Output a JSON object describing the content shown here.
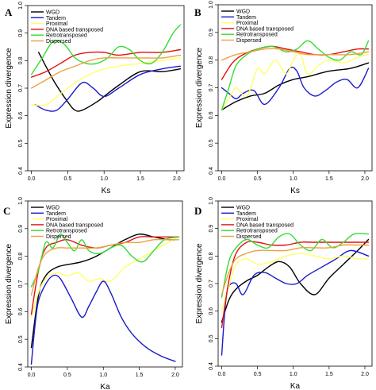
{
  "figure": {
    "legend_entries": [
      "WGD",
      "Tandem",
      "Proximal",
      "DNA based transposed",
      "Retrotransposed",
      "Dispersed"
    ],
    "series_colors": {
      "WGD": "#000000",
      "Tandem": "#1a1acc",
      "Proximal": "#ffff66",
      "DNA based transposed": "#e01010",
      "Retrotransposed": "#33dd33",
      "Dispersed": "#f0a040"
    }
  },
  "chart_data": [
    {
      "type": "line",
      "panel": "A",
      "xlabel": "Ks",
      "ylabel": "Expression divergence",
      "xlim": [
        -0.05,
        2.1
      ],
      "ylim": [
        0.4,
        1.0
      ],
      "xticks": [
        "0.0",
        "0.5",
        "1.0",
        "1.5",
        "2.0"
      ],
      "yticks": [
        "0.4",
        "0.5",
        "0.6",
        "0.7",
        "0.8",
        "0.9",
        "1.0"
      ],
      "legend_position": "top-left",
      "series": [
        {
          "name": "WGD",
          "x": [
            0.1,
            0.3,
            0.5,
            0.6,
            0.7,
            0.9,
            1.0,
            1.2,
            1.5,
            1.8,
            2.05
          ],
          "y": [
            0.83,
            0.73,
            0.65,
            0.62,
            0.62,
            0.65,
            0.67,
            0.71,
            0.76,
            0.76,
            0.77
          ]
        },
        {
          "name": "Tandem",
          "x": [
            0.05,
            0.2,
            0.35,
            0.5,
            0.7,
            0.85,
            1.0,
            1.2,
            1.5,
            1.8,
            2.05
          ],
          "y": [
            0.64,
            0.62,
            0.62,
            0.66,
            0.72,
            0.7,
            0.67,
            0.7,
            0.75,
            0.77,
            0.78
          ]
        },
        {
          "name": "Proximal",
          "x": [
            0.0,
            0.2,
            0.4,
            0.6,
            0.8,
            1.0,
            1.2,
            1.5,
            1.8,
            2.05
          ],
          "y": [
            0.64,
            0.64,
            0.68,
            0.72,
            0.75,
            0.77,
            0.78,
            0.79,
            0.8,
            0.81
          ]
        },
        {
          "name": "DNA based transposed",
          "x": [
            0.0,
            0.2,
            0.4,
            0.6,
            0.8,
            1.0,
            1.2,
            1.5,
            1.8,
            2.05
          ],
          "y": [
            0.74,
            0.76,
            0.79,
            0.82,
            0.83,
            0.83,
            0.82,
            0.83,
            0.83,
            0.84
          ]
        },
        {
          "name": "Retrotransposed",
          "x": [
            0.0,
            0.15,
            0.3,
            0.45,
            0.6,
            0.75,
            0.9,
            1.05,
            1.2,
            1.35,
            1.5,
            1.65,
            1.8,
            1.95,
            2.05
          ],
          "y": [
            0.75,
            0.81,
            0.87,
            0.86,
            0.81,
            0.79,
            0.79,
            0.81,
            0.85,
            0.84,
            0.8,
            0.79,
            0.83,
            0.9,
            0.93
          ]
        },
        {
          "name": "Dispersed",
          "x": [
            0.0,
            0.2,
            0.4,
            0.6,
            0.8,
            1.0,
            1.2,
            1.5,
            1.8,
            2.05
          ],
          "y": [
            0.7,
            0.73,
            0.76,
            0.78,
            0.8,
            0.81,
            0.81,
            0.81,
            0.81,
            0.82
          ]
        }
      ]
    },
    {
      "type": "line",
      "panel": "B",
      "xlabel": "Ks",
      "ylabel": "Expression divergence",
      "xlim": [
        -0.05,
        2.1
      ],
      "ylim": [
        0.4,
        1.0
      ],
      "xticks": [
        "0.0",
        "0.5",
        "1.0",
        "1.5",
        "2.0"
      ],
      "yticks": [
        "0.4",
        "0.5",
        "0.6",
        "0.7",
        "0.8",
        "0.9",
        "1.0"
      ],
      "legend_position": "top-left",
      "series": [
        {
          "name": "WGD",
          "x": [
            0.0,
            0.2,
            0.4,
            0.6,
            0.8,
            1.0,
            1.2,
            1.5,
            1.8,
            2.05
          ],
          "y": [
            0.62,
            0.65,
            0.67,
            0.68,
            0.71,
            0.73,
            0.74,
            0.76,
            0.77,
            0.79
          ]
        },
        {
          "name": "Tandem",
          "x": [
            0.0,
            0.1,
            0.2,
            0.3,
            0.45,
            0.6,
            0.8,
            0.95,
            1.05,
            1.15,
            1.3,
            1.45,
            1.6,
            1.75,
            1.9,
            2.05
          ],
          "y": [
            0.7,
            0.68,
            0.66,
            0.68,
            0.69,
            0.64,
            0.7,
            0.77,
            0.76,
            0.7,
            0.67,
            0.69,
            0.72,
            0.73,
            0.7,
            0.77
          ]
        },
        {
          "name": "Proximal",
          "x": [
            0.0,
            0.1,
            0.2,
            0.35,
            0.5,
            0.6,
            0.75,
            0.9,
            1.0,
            1.1,
            1.2,
            1.35,
            1.5,
            1.7,
            1.9,
            2.05
          ],
          "y": [
            0.62,
            0.66,
            0.7,
            0.67,
            0.77,
            0.75,
            0.8,
            0.75,
            0.8,
            0.82,
            0.75,
            0.78,
            0.8,
            0.79,
            0.81,
            0.82
          ]
        },
        {
          "name": "DNA based transposed",
          "x": [
            0.0,
            0.15,
            0.3,
            0.5,
            0.7,
            0.9,
            1.1,
            1.3,
            1.5,
            1.7,
            1.9,
            2.05
          ],
          "y": [
            0.73,
            0.79,
            0.82,
            0.84,
            0.85,
            0.84,
            0.83,
            0.82,
            0.82,
            0.83,
            0.84,
            0.84
          ]
        },
        {
          "name": "Retrotransposed",
          "x": [
            0.0,
            0.1,
            0.2,
            0.35,
            0.5,
            0.7,
            0.9,
            1.05,
            1.2,
            1.35,
            1.5,
            1.65,
            1.8,
            1.95,
            2.05
          ],
          "y": [
            0.62,
            0.7,
            0.78,
            0.82,
            0.84,
            0.85,
            0.83,
            0.84,
            0.87,
            0.84,
            0.81,
            0.8,
            0.83,
            0.82,
            0.87
          ]
        },
        {
          "name": "Dispersed",
          "x": [
            0.0,
            0.2,
            0.4,
            0.6,
            0.8,
            1.0,
            1.2,
            1.5,
            1.8,
            2.05
          ],
          "y": [
            0.8,
            0.82,
            0.83,
            0.84,
            0.84,
            0.83,
            0.82,
            0.82,
            0.82,
            0.83
          ]
        }
      ]
    },
    {
      "type": "line",
      "panel": "C",
      "xlabel": "Ka",
      "ylabel": "Expression divergence",
      "xlim": [
        -0.05,
        2.1
      ],
      "ylim": [
        0.4,
        1.0
      ],
      "xticks": [
        "0.0",
        "0.5",
        "1.0",
        "1.5",
        "2.0"
      ],
      "yticks": [
        "0.4",
        "0.5",
        "0.6",
        "0.7",
        "0.8",
        "0.9",
        "1.0"
      ],
      "legend_position": "top-left",
      "series": [
        {
          "name": "WGD",
          "x": [
            0.0,
            0.1,
            0.2,
            0.35,
            0.5,
            0.7,
            0.9,
            1.1,
            1.3,
            1.5,
            1.7,
            1.9,
            2.0
          ],
          "y": [
            0.47,
            0.66,
            0.73,
            0.76,
            0.77,
            0.78,
            0.8,
            0.83,
            0.86,
            0.88,
            0.87,
            0.86,
            0.86
          ]
        },
        {
          "name": "Tandem",
          "x": [
            0.0,
            0.05,
            0.1,
            0.2,
            0.3,
            0.4,
            0.55,
            0.7,
            0.8,
            0.9,
            1.0,
            1.1,
            1.25,
            1.4,
            1.6,
            1.8,
            2.0
          ],
          "y": [
            0.41,
            0.55,
            0.64,
            0.7,
            0.73,
            0.72,
            0.65,
            0.58,
            0.62,
            0.67,
            0.71,
            0.67,
            0.58,
            0.52,
            0.47,
            0.44,
            0.42
          ]
        },
        {
          "name": "Proximal",
          "x": [
            0.0,
            0.1,
            0.2,
            0.35,
            0.5,
            0.65,
            0.8,
            0.95,
            1.1,
            1.3,
            1.5,
            1.7,
            1.9,
            2.05
          ],
          "y": [
            0.58,
            0.67,
            0.72,
            0.74,
            0.73,
            0.74,
            0.71,
            0.72,
            0.71,
            0.76,
            0.79,
            0.82,
            0.85,
            0.87
          ]
        },
        {
          "name": "DNA based transposed",
          "x": [
            0.0,
            0.1,
            0.2,
            0.35,
            0.5,
            0.7,
            0.9,
            1.1,
            1.3,
            1.5,
            1.7,
            1.9,
            2.05
          ],
          "y": [
            0.59,
            0.75,
            0.83,
            0.85,
            0.86,
            0.84,
            0.83,
            0.84,
            0.85,
            0.87,
            0.87,
            0.87,
            0.87
          ]
        },
        {
          "name": "Retrotransposed",
          "x": [
            0.0,
            0.1,
            0.2,
            0.3,
            0.4,
            0.5,
            0.6,
            0.7,
            0.8,
            0.95,
            1.1,
            1.25,
            1.4,
            1.55,
            1.7,
            1.85,
            2.05
          ],
          "y": [
            0.69,
            0.75,
            0.85,
            0.83,
            0.88,
            0.85,
            0.82,
            0.86,
            0.82,
            0.81,
            0.83,
            0.84,
            0.8,
            0.78,
            0.82,
            0.86,
            0.87
          ]
        },
        {
          "name": "Dispersed",
          "x": [
            0.0,
            0.1,
            0.2,
            0.35,
            0.5,
            0.7,
            0.9,
            1.1,
            1.3,
            1.5,
            1.7,
            1.9,
            2.05
          ],
          "y": [
            0.66,
            0.76,
            0.81,
            0.83,
            0.83,
            0.83,
            0.83,
            0.84,
            0.85,
            0.85,
            0.86,
            0.86,
            0.86
          ]
        }
      ]
    },
    {
      "type": "line",
      "panel": "D",
      "xlabel": "Ka",
      "ylabel": "Expression divergence",
      "xlim": [
        -0.05,
        2.1
      ],
      "ylim": [
        0.4,
        1.0
      ],
      "xticks": [
        "0.0",
        "0.5",
        "1.0",
        "1.5",
        "2.0"
      ],
      "yticks": [
        "0.4",
        "0.5",
        "0.6",
        "0.7",
        "0.8",
        "0.9",
        "1.0"
      ],
      "legend_position": "top-left",
      "series": [
        {
          "name": "WGD",
          "x": [
            0.0,
            0.1,
            0.2,
            0.35,
            0.5,
            0.65,
            0.8,
            0.95,
            1.1,
            1.3,
            1.5,
            1.7,
            1.9,
            2.05
          ],
          "y": [
            0.56,
            0.64,
            0.68,
            0.71,
            0.73,
            0.76,
            0.78,
            0.76,
            0.7,
            0.66,
            0.72,
            0.77,
            0.82,
            0.86
          ]
        },
        {
          "name": "Tandem",
          "x": [
            0.0,
            0.05,
            0.1,
            0.2,
            0.3,
            0.45,
            0.6,
            0.75,
            0.9,
            1.05,
            1.2,
            1.4,
            1.6,
            1.8,
            2.05
          ],
          "y": [
            0.44,
            0.62,
            0.69,
            0.7,
            0.66,
            0.73,
            0.74,
            0.72,
            0.7,
            0.7,
            0.73,
            0.76,
            0.79,
            0.82,
            0.8
          ]
        },
        {
          "name": "Proximal",
          "x": [
            0.0,
            0.1,
            0.2,
            0.35,
            0.5,
            0.7,
            0.9,
            1.1,
            1.3,
            1.5,
            1.7,
            1.9,
            2.05
          ],
          "y": [
            0.6,
            0.69,
            0.77,
            0.79,
            0.77,
            0.78,
            0.8,
            0.81,
            0.8,
            0.79,
            0.8,
            0.79,
            0.79
          ]
        },
        {
          "name": "DNA based transposed",
          "x": [
            0.0,
            0.1,
            0.2,
            0.35,
            0.5,
            0.7,
            0.9,
            1.1,
            1.3,
            1.5,
            1.7,
            1.9,
            2.05
          ],
          "y": [
            0.54,
            0.71,
            0.81,
            0.85,
            0.85,
            0.84,
            0.84,
            0.85,
            0.85,
            0.85,
            0.85,
            0.85,
            0.85
          ]
        },
        {
          "name": "Retrotransposed",
          "x": [
            0.0,
            0.1,
            0.2,
            0.35,
            0.5,
            0.65,
            0.8,
            0.95,
            1.1,
            1.25,
            1.4,
            1.55,
            1.7,
            1.85,
            2.05
          ],
          "y": [
            0.65,
            0.78,
            0.83,
            0.86,
            0.84,
            0.83,
            0.87,
            0.88,
            0.84,
            0.82,
            0.86,
            0.83,
            0.85,
            0.88,
            0.88
          ]
        },
        {
          "name": "Dispersed",
          "x": [
            0.0,
            0.1,
            0.2,
            0.35,
            0.5,
            0.7,
            0.9,
            1.1,
            1.3,
            1.5,
            1.7,
            1.9,
            2.05
          ],
          "y": [
            0.66,
            0.74,
            0.79,
            0.81,
            0.82,
            0.82,
            0.82,
            0.83,
            0.83,
            0.83,
            0.84,
            0.84,
            0.84
          ]
        }
      ]
    }
  ]
}
